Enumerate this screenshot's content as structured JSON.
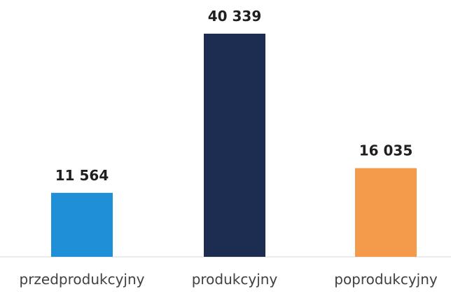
{
  "chart_data": {
    "type": "bar",
    "categories": [
      "przedprodukcyjny",
      "produkcyjny",
      "poprodukcyjny"
    ],
    "values": [
      11564,
      40339,
      16035
    ],
    "value_labels": [
      "11 564",
      "40 339",
      "16 035"
    ],
    "colors": [
      "#1f8fd8",
      "#1d2d52",
      "#f39a4b"
    ],
    "ylim": [
      0,
      40339
    ],
    "grid": false,
    "legend": "none",
    "title": "",
    "xlabel": "",
    "ylabel": ""
  }
}
